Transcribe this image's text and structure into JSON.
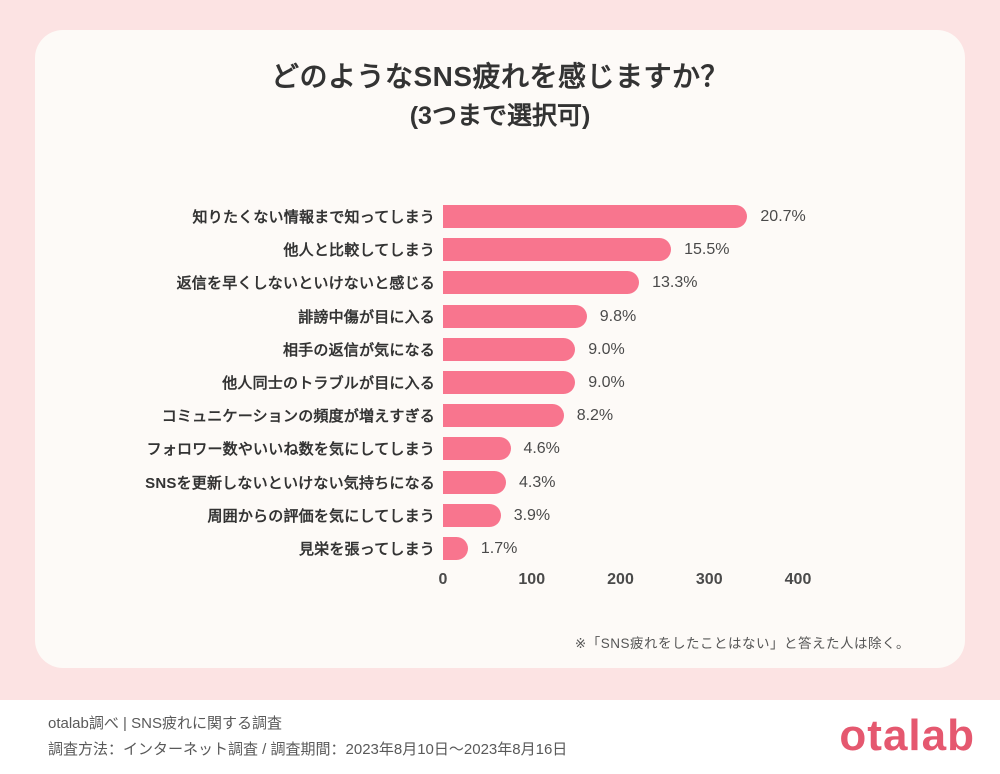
{
  "page": {
    "title_line1": "どのようなSNS疲れを感じますか？",
    "title_line2": "(3つまで選択可)",
    "footnote": "※「SNS疲れをしたことはない」と答えた人は除く。"
  },
  "chart_data": {
    "type": "bar",
    "orientation": "horizontal",
    "title": "どのようなSNS疲れを感じますか？（3つまで選択可）",
    "categories": [
      "知りたくない情報まで知ってしまう",
      "他人と比較してしまう",
      "返信を早くしないといけないと感じる",
      "誹謗中傷が目に入る",
      "相手の返信が気になる",
      "他人同士のトラブルが目に入る",
      "コミュニケーションの頻度が増えすぎる",
      "フォロワー数やいいね数を気にしてしまう",
      "SNSを更新しないといけない気持ちになる",
      "周囲からの評価を気にしてしまう",
      "見栄を張ってしまう"
    ],
    "values_pct": [
      20.7,
      15.5,
      13.3,
      9.8,
      9.0,
      9.0,
      8.2,
      4.6,
      4.3,
      3.9,
      1.7
    ],
    "pct_labels": [
      "20.7%",
      "15.5%",
      "13.3%",
      "9.8%",
      "9.0%",
      "9.0%",
      "8.2%",
      "4.6%",
      "4.3%",
      "3.9%",
      "1.7%"
    ],
    "values_count_est": [
      343,
      257,
      221,
      162,
      149,
      149,
      136,
      76,
      71,
      65,
      28
    ],
    "x_axis": {
      "ticks": [
        0,
        100,
        200,
        300,
        400
      ],
      "max": 400
    },
    "grid": false,
    "legend": false,
    "bar_color": "#f8758e",
    "annotation": "※「SNS疲れをしたことはない」と答えた人は除く。"
  },
  "footer": {
    "line1": "otalab調べ | SNS疲れに関する調査",
    "line2": "調査方法：インターネット調査 / 調査期間：2023年8月10日～2023年8月16日",
    "logo_text": "otalab"
  },
  "colors": {
    "background": "#fce3e3",
    "card": "#fdfaf7",
    "bar": "#f8758e",
    "title": "#333333",
    "label": "#333333",
    "value": "#4a4a4a",
    "axis": "#4a4a4a",
    "footnote": "#555555",
    "footer_bg": "#ffffff",
    "footer_text": "#595959",
    "logo": "#e5586f"
  }
}
